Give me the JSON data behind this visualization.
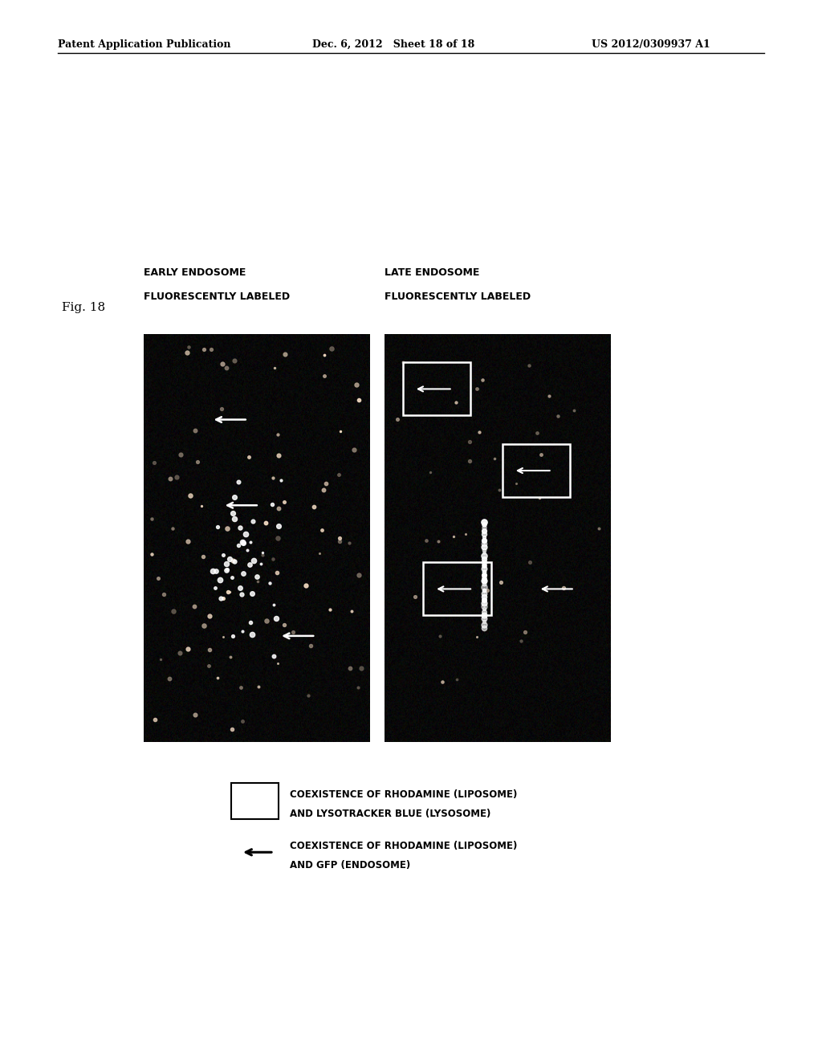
{
  "bg_color": "#ffffff",
  "header_left": "Patent Application Publication",
  "header_center": "Dec. 6, 2012   Sheet 18 of 18",
  "header_right": "US 2012/0309937 A1",
  "fig_label": "Fig. 18",
  "left_panel_title_line1": "EARLY ENDOSOME",
  "left_panel_title_line2": "FLUORESCENTLY LABELED",
  "right_panel_title_line1": "LATE ENDOSOME",
  "right_panel_title_line2": "FLUORESCENTLY LABELED",
  "legend1_text_line1": "COEXISTENCE OF RHODAMINE (LIPOSOME)",
  "legend1_text_line2": "AND LYSOTRACKER BLUE (LYSOSOME)",
  "legend2_text_line1": "COEXISTENCE OF RHODAMINE (LIPOSOME)",
  "legend2_text_line2": "AND GFP (ENDOSOME)"
}
